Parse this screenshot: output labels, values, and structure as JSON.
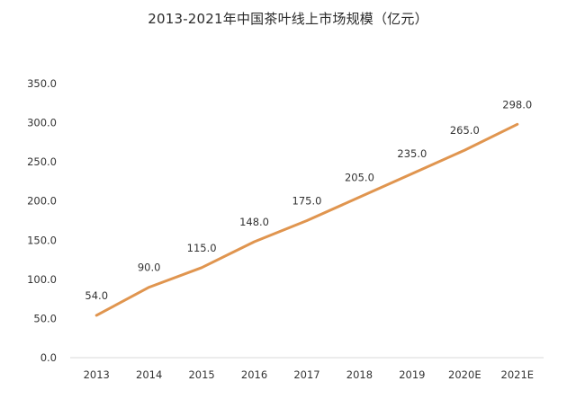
{
  "chart_data": {
    "type": "line",
    "title": "2013-2021年中国茶叶线上市场规模（亿元）",
    "xlabel": "",
    "ylabel": "",
    "categories": [
      "2013",
      "2014",
      "2015",
      "2016",
      "2017",
      "2018",
      "2019",
      "2020E",
      "2021E"
    ],
    "series": [
      {
        "values": [
          54.0,
          90.0,
          115.0,
          148.0,
          175.0,
          205.0,
          235.0,
          265.0,
          298.0
        ],
        "data_labels": [
          "54.0",
          "90.0",
          "115.0",
          "148.0",
          "175.0",
          "205.0",
          "235.0",
          "265.0",
          "298.0"
        ],
        "color": "#E0954F"
      }
    ],
    "ylim": [
      0,
      350
    ],
    "yticks": [
      0,
      50,
      100,
      150,
      200,
      250,
      300,
      350
    ],
    "ytick_labels": [
      "0.0",
      "50.0",
      "100.0",
      "150.0",
      "200.0",
      "250.0",
      "300.0",
      "350.0"
    ],
    "grid": false,
    "legend": "none",
    "axis_color": "#D9D9D9"
  }
}
